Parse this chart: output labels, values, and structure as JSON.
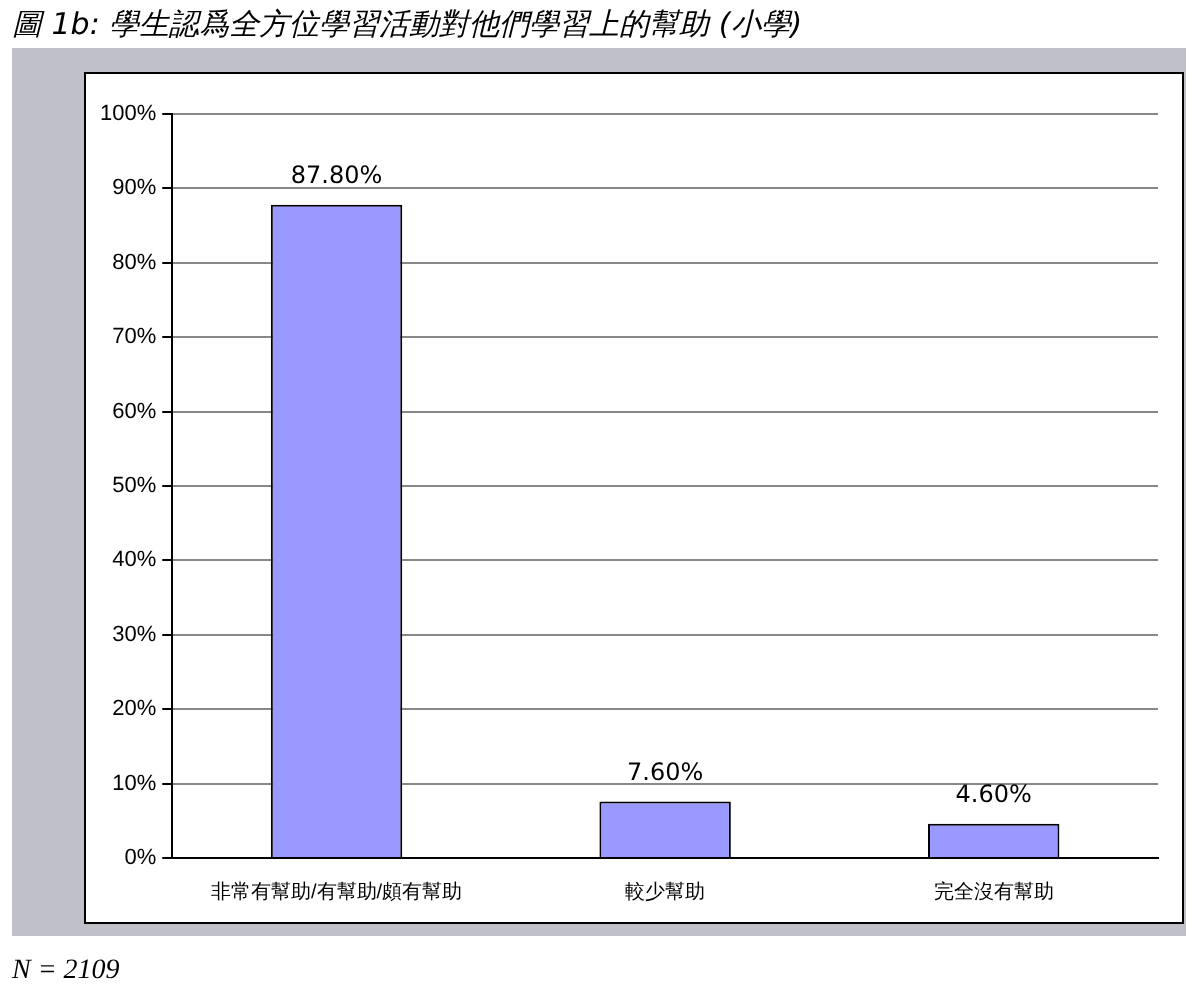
{
  "chart_data": {
    "type": "bar",
    "title": "圖 1b: 學生認爲全方位學習活動對他們學習上的幫助 (小學)",
    "categories": [
      "非常有幫助/有幫助/頗有幫助",
      "較少幫助",
      "完全沒有幫助"
    ],
    "values": [
      87.8,
      7.6,
      4.6
    ],
    "color": "#9999ff",
    "value_labels": [
      "87.80%",
      "7.60%",
      "4.60%"
    ],
    "ylim": [
      0,
      100
    ],
    "yticks": [
      {
        "value": 0,
        "label": "0%"
      },
      {
        "value": 10,
        "label": "10%"
      },
      {
        "value": 20,
        "label": "20%"
      },
      {
        "value": 30,
        "label": "30%"
      },
      {
        "value": 40,
        "label": "40%"
      },
      {
        "value": 50,
        "label": "50%"
      },
      {
        "value": 60,
        "label": "60%"
      },
      {
        "value": 70,
        "label": "70%"
      },
      {
        "value": 80,
        "label": "80%"
      },
      {
        "value": 90,
        "label": "90%"
      },
      {
        "value": 100,
        "label": "100%"
      }
    ],
    "grid": "y",
    "legend": false,
    "annotations": [
      "N = 2109"
    ]
  }
}
